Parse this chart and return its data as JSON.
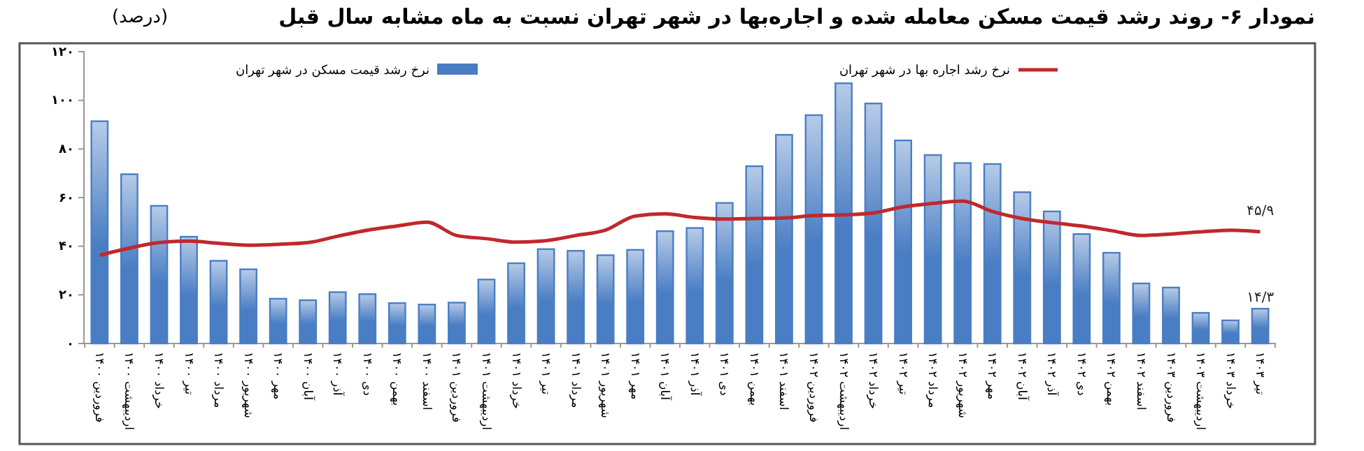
{
  "chart_data": {
    "type": "bar",
    "title": "نمودار ۶- روند رشد قیمت مسکن معامله شده و اجاره‌بها در شهر تهران نسبت به ماه مشابه سال قبل",
    "ylabel": "(درصد)",
    "categories": [
      "فروردین ۱۴۰۰",
      "اردیبهشت ۱۴۰۰",
      "خرداد ۱۴۰۰",
      "تیر ۱۴۰۰",
      "مرداد ۱۴۰۰",
      "شهریور ۱۴۰۰",
      "مهر ۱۴۰۰",
      "آبان ۱۴۰۰",
      "آذر ۱۴۰۰",
      "دی ۱۴۰۰",
      "بهمن ۱۴۰۰",
      "اسفند ۱۴۰۰",
      "فروردین ۱۴۰۱",
      "اردیبهشت ۱۴۰۱",
      "خرداد ۱۴۰۱",
      "تیر ۱۴۰۱",
      "مرداد ۱۴۰۱",
      "شهریور ۱۴۰۱",
      "مهر ۱۴۰۱",
      "آبان ۱۴۰۱",
      "آذر ۱۴۰۱",
      "دی ۱۴۰۱",
      "بهمن ۱۴۰۱",
      "اسفند ۱۴۰۱",
      "فروردین ۱۴۰۲",
      "اردیبهشت ۱۴۰۲",
      "خرداد ۱۴۰۲",
      "تیر ۱۴۰۲",
      "مرداد ۱۴۰۲",
      "شهریور ۱۴۰۲",
      "مهر ۱۴۰۲",
      "آبان ۱۴۰۲",
      "آذر ۱۴۰۲",
      "دی ۱۴۰۲",
      "بهمن ۱۴۰۲",
      "اسفند ۱۴۰۲",
      "فروردین ۱۴۰۳",
      "اردیبهشت ۱۴۰۳",
      "خرداد ۱۴۰۳",
      "تیر ۱۴۰۳"
    ],
    "series": [
      {
        "name": "نرخ رشد قیمت مسکن در شهر تهران",
        "color": "#4a7ec4",
        "values": [
          91.4,
          69.6,
          56.6,
          43.9,
          34,
          30.5,
          18.4,
          17.8,
          21.1,
          20.3,
          16.6,
          16,
          16.8,
          26.3,
          33,
          38.8,
          38.1,
          36.3,
          38.5,
          46.2,
          47.5,
          57.8,
          72.9,
          85.8,
          93.9,
          107,
          98.7,
          83.5,
          77.5,
          74.2,
          73.8,
          62.2,
          54.3,
          45,
          37.3,
          24.7,
          23,
          12.6,
          9.5,
          14.3
        ],
        "value_labels": [
          null,
          null,
          null,
          null,
          null,
          null,
          null,
          null,
          null,
          null,
          null,
          null,
          null,
          null,
          null,
          null,
          null,
          null,
          null,
          null,
          null,
          null,
          null,
          null,
          null,
          null,
          null,
          null,
          null,
          null,
          null,
          null,
          null,
          null,
          null,
          null,
          null,
          null,
          null,
          "۱۴/۳"
        ]
      },
      {
        "name": "نرخ رشد اجاره بها در شهر تهران",
        "type": "line",
        "color": "#c0282d",
        "values": [
          36.3,
          39.2,
          41.5,
          42.1,
          41.2,
          40.4,
          40.8,
          41.5,
          44.1,
          46.6,
          48.3,
          49.9,
          44.4,
          43.1,
          41.7,
          42.3,
          44.4,
          46.6,
          52.4,
          53.3,
          51.8,
          51.2,
          51.4,
          51.6,
          52.6,
          52.9,
          53.7,
          56.2,
          57.6,
          58.6,
          54.3,
          51.4,
          49.7,
          48.3,
          46.4,
          44.4,
          45,
          45.9,
          46.6,
          45.9
        ],
        "value_labels": [
          null,
          null,
          null,
          null,
          null,
          null,
          null,
          null,
          null,
          null,
          null,
          null,
          null,
          null,
          null,
          null,
          null,
          null,
          null,
          null,
          null,
          null,
          null,
          null,
          null,
          null,
          null,
          null,
          null,
          null,
          null,
          null,
          null,
          null,
          null,
          null,
          null,
          null,
          null,
          "۴۵/۹"
        ]
      }
    ],
    "ylim": [
      0,
      120
    ],
    "yticks": [
      {
        "value": 0,
        "label": "۰"
      },
      {
        "value": 20,
        "label": "۲۰"
      },
      {
        "value": 40,
        "label": "۴۰"
      },
      {
        "value": 60,
        "label": "۶۰"
      },
      {
        "value": 80,
        "label": "۸۰"
      },
      {
        "value": 100,
        "label": "۱۰۰"
      },
      {
        "value": 120,
        "label": "۱۲۰"
      }
    ],
    "grid": false,
    "legend": "top",
    "marker": "none",
    "line_style": "solid"
  }
}
